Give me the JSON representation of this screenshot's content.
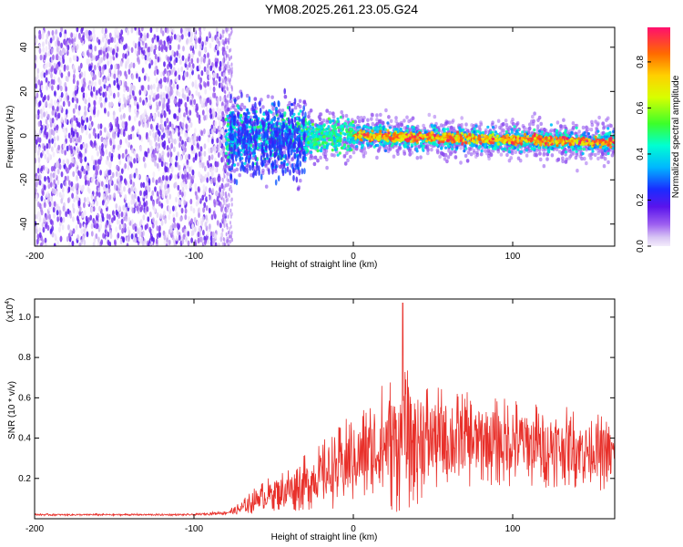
{
  "title": "YM08.2025.261.23.05.G24",
  "chart_data": [
    {
      "type": "heatmap",
      "xlabel": "Height of straight line (km)",
      "ylabel": "Frequency (Hz)",
      "xlim": [
        -200,
        164
      ],
      "ylim": [
        -50,
        49
      ],
      "xticks": [
        -200,
        -100,
        0,
        100
      ],
      "xtick_labels": [
        "-200",
        "-100",
        "0",
        "100"
      ],
      "yticks": [
        -40,
        -20,
        0,
        20,
        40
      ],
      "ytick_labels": [
        "-40",
        "-20",
        "0",
        "20",
        "40"
      ],
      "colorbar": {
        "label": "Normalized spectral amplitude",
        "range": [
          0.0,
          0.95
        ],
        "ticks": [
          0.0,
          0.2,
          0.4,
          0.6,
          0.8
        ],
        "tick_labels": [
          "0.0",
          "0.2",
          "0.4",
          "0.6",
          "0.8"
        ]
      },
      "regions": [
        {
          "x_range": [
            -200,
            -80
          ],
          "description_level": "noise",
          "amplitude": 0.05
        },
        {
          "x_range": [
            -80,
            -30
          ],
          "center_freq": 0,
          "amplitude": 0.25
        },
        {
          "x_range": [
            -30,
            164
          ],
          "center_freq_start": 0,
          "center_freq_end": -3,
          "amplitude": 0.9
        }
      ]
    },
    {
      "type": "line",
      "xlabel": "Height of straight line (km)",
      "ylabel": "SNR (10 * v/v)",
      "y_exponent_label": "(x10",
      "y_exponent_power": "4",
      "xlim": [
        -200,
        164
      ],
      "ylim": [
        0,
        1.09
      ],
      "xticks": [
        -200,
        -100,
        0,
        100
      ],
      "xtick_labels": [
        "-200",
        "-100",
        "0",
        "100"
      ],
      "yticks": [
        0.2,
        0.4,
        0.6,
        0.8,
        1.0
      ],
      "ytick_labels": [
        "0.2",
        "0.4",
        "0.6",
        "0.8",
        "1.0"
      ],
      "series": [
        {
          "name": "SNR",
          "color": "#e8302a",
          "x": [
            -200,
            -150,
            -100,
            -80,
            -70,
            -60,
            -50,
            -40,
            -30,
            -20,
            -10,
            0,
            10,
            20,
            30,
            40,
            50,
            60,
            70,
            80,
            90,
            100,
            110,
            120,
            130,
            140,
            150,
            164
          ],
          "mean": [
            0.02,
            0.02,
            0.02,
            0.03,
            0.05,
            0.1,
            0.13,
            0.15,
            0.18,
            0.22,
            0.25,
            0.3,
            0.33,
            0.37,
            0.4,
            0.4,
            0.4,
            0.39,
            0.39,
            0.39,
            0.38,
            0.38,
            0.37,
            0.36,
            0.36,
            0.35,
            0.34,
            0.31
          ],
          "spread": [
            0.005,
            0.005,
            0.005,
            0.01,
            0.04,
            0.07,
            0.09,
            0.12,
            0.14,
            0.17,
            0.2,
            0.24,
            0.27,
            0.33,
            0.38,
            0.33,
            0.28,
            0.25,
            0.24,
            0.23,
            0.22,
            0.23,
            0.22,
            0.21,
            0.2,
            0.2,
            0.19,
            0.2
          ],
          "peak": {
            "x": 31,
            "y": 1.07
          }
        }
      ]
    }
  ]
}
